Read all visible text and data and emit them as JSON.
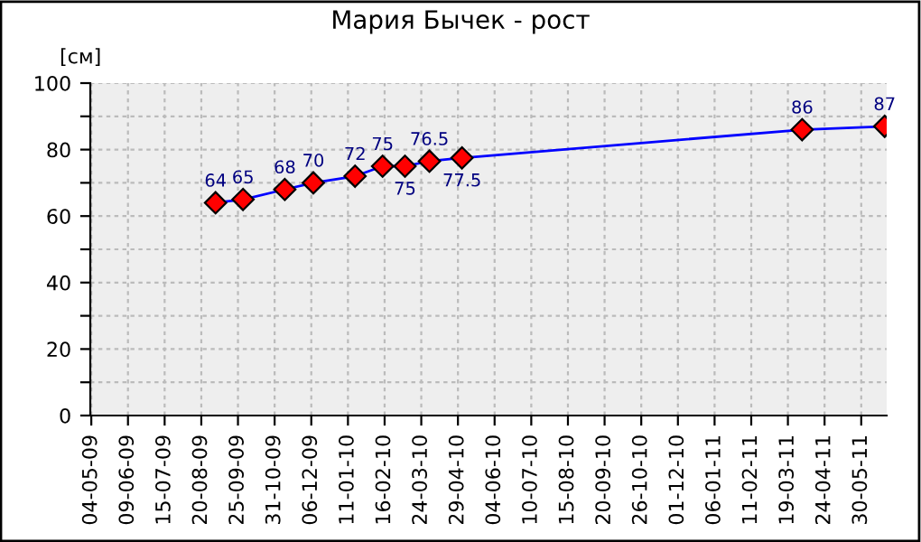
{
  "chart_data": {
    "type": "line",
    "title": "Мария Бычек - рост",
    "ylabel": "[см]",
    "x": [
      "2009-09-03",
      "2009-09-30",
      "2009-11-10",
      "2009-12-08",
      "2010-01-18",
      "2010-02-14",
      "2010-03-08",
      "2010-04-01",
      "2010-05-03",
      "2011-04-02",
      "2011-06-22"
    ],
    "series": [
      {
        "color": "#0000ff",
        "values": [
          64,
          65,
          68,
          70,
          72,
          75,
          75,
          76.5,
          77.5,
          86,
          87
        ]
      }
    ],
    "marker": "diamond",
    "data_labels": true,
    "grid": true,
    "xlim": [
      "2009-05-03",
      "2011-06-24"
    ],
    "xticks": [
      {
        "value": "2009-05-04",
        "label": "04-05-09"
      },
      {
        "value": "2009-06-09",
        "label": "09-06-09"
      },
      {
        "value": "2009-07-15",
        "label": "15-07-09"
      },
      {
        "value": "2009-08-20",
        "label": "20-08-09"
      },
      {
        "value": "2009-09-25",
        "label": "25-09-09"
      },
      {
        "value": "2009-10-31",
        "label": "31-10-09"
      },
      {
        "value": "2009-12-06",
        "label": "06-12-09"
      },
      {
        "value": "2010-01-11",
        "label": "11-01-10"
      },
      {
        "value": "2010-02-16",
        "label": "16-02-10"
      },
      {
        "value": "2010-03-24",
        "label": "24-03-10"
      },
      {
        "value": "2010-04-29",
        "label": "29-04-10"
      },
      {
        "value": "2010-06-04",
        "label": "04-06-10"
      },
      {
        "value": "2010-07-10",
        "label": "10-07-10"
      },
      {
        "value": "2010-08-15",
        "label": "15-08-10"
      },
      {
        "value": "2010-09-20",
        "label": "20-09-10"
      },
      {
        "value": "2010-10-26",
        "label": "26-10-10"
      },
      {
        "value": "2010-12-01",
        "label": "01-12-10"
      },
      {
        "value": "2011-01-06",
        "label": "06-01-11"
      },
      {
        "value": "2011-02-11",
        "label": "11-02-11"
      },
      {
        "value": "2011-03-19",
        "label": "19-03-11"
      },
      {
        "value": "2011-04-24",
        "label": "24-04-11"
      },
      {
        "value": "2011-05-30",
        "label": "30-05-11"
      }
    ],
    "ylim": [
      0,
      100
    ],
    "yticks": [
      0,
      {
        "value": 10,
        "label": null
      },
      20,
      {
        "value": 30,
        "label": null
      },
      40,
      {
        "value": 50,
        "label": null
      },
      60,
      {
        "value": 70,
        "label": null
      },
      80,
      {
        "value": 90,
        "label": null
      },
      100
    ]
  }
}
